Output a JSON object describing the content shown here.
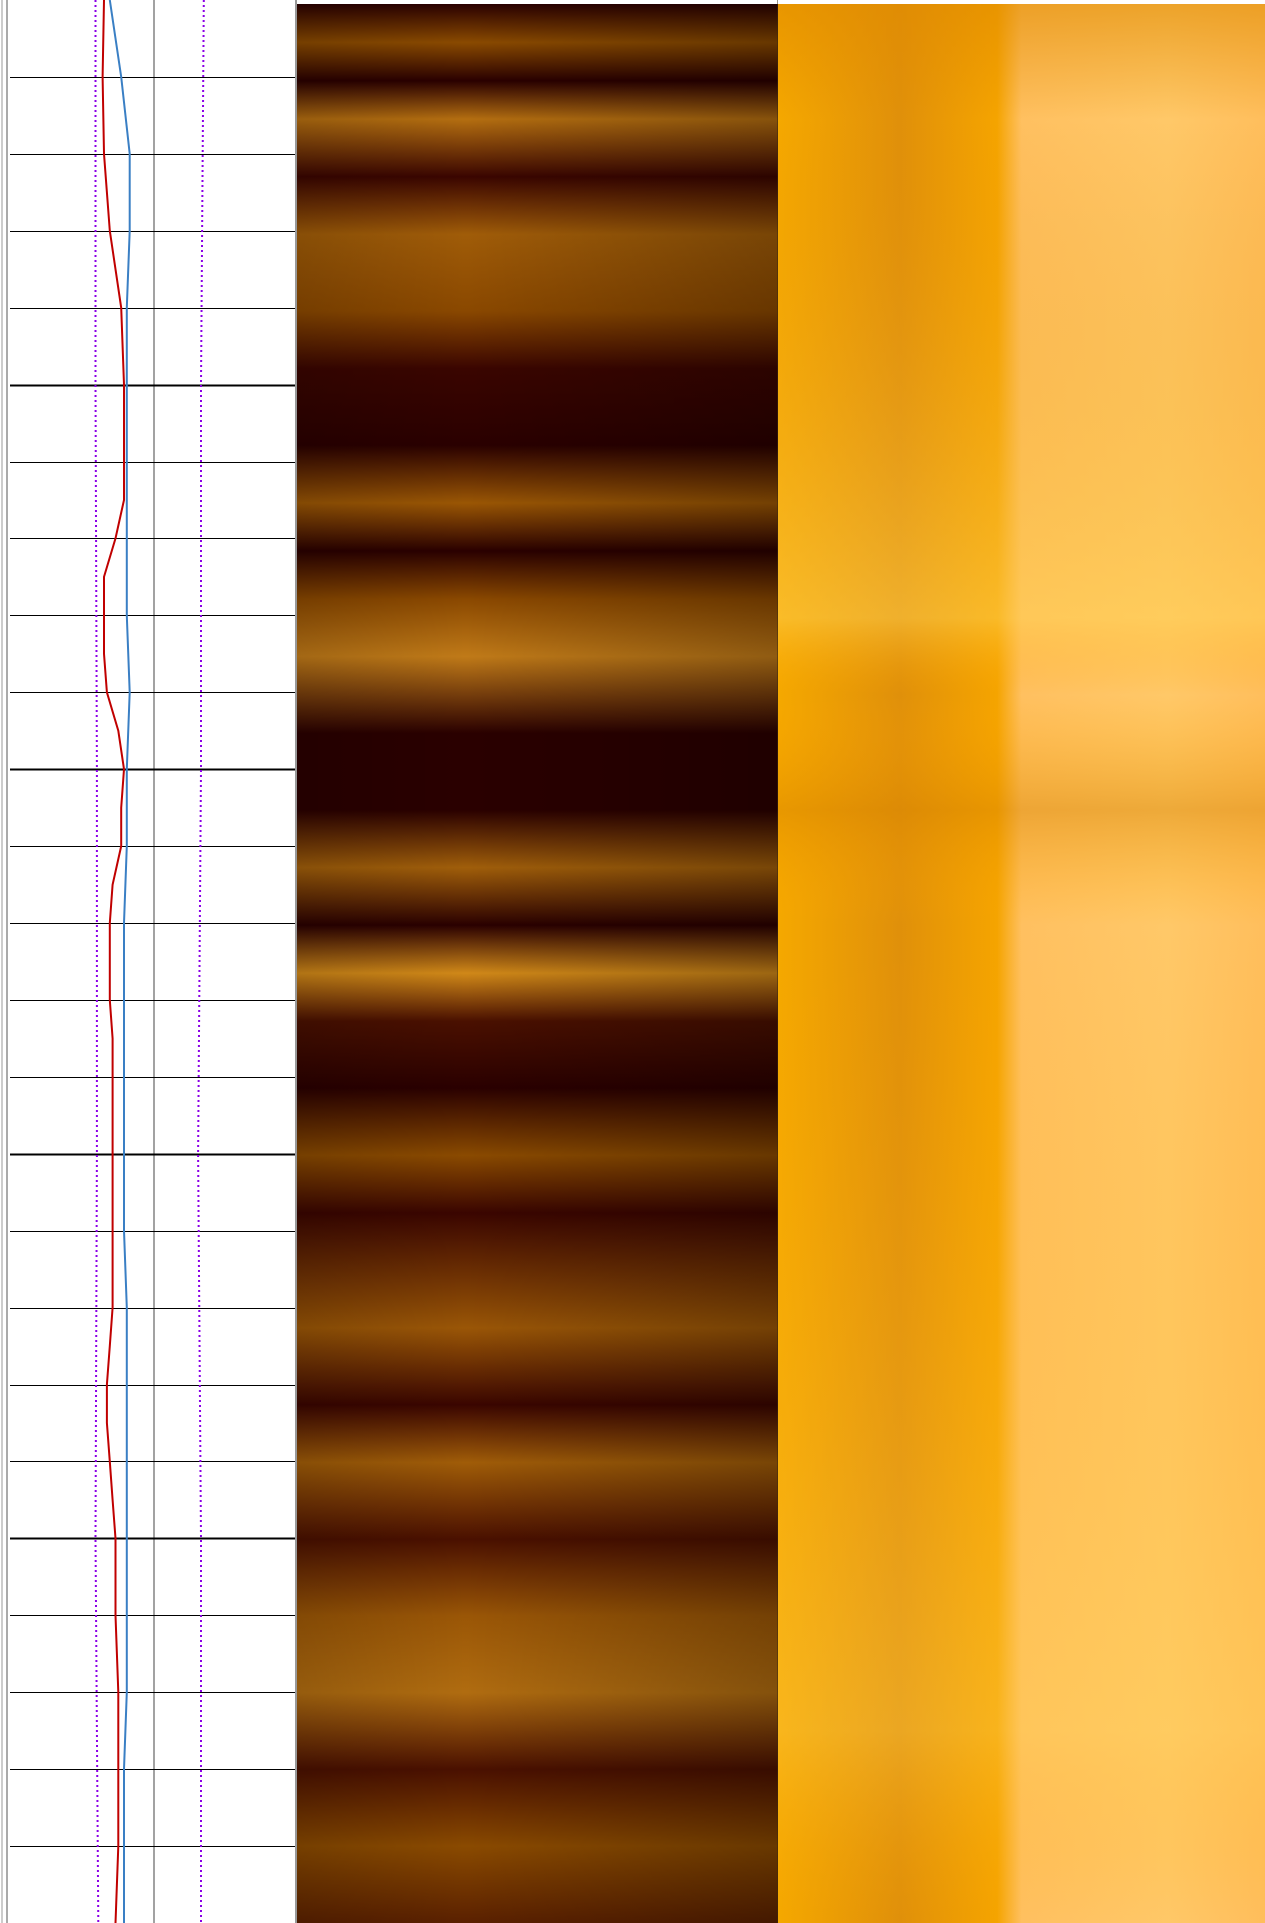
{
  "chart_data": {
    "type": "line",
    "title": "",
    "xlabel": "",
    "ylabel": "",
    "depth_range": [
      0,
      100
    ],
    "grid": true,
    "grid_major_every": 20,
    "grid_minor_every": 4,
    "curve_range": [
      0,
      10
    ],
    "series": [
      {
        "color": "#c00000",
        "line_style": "solid",
        "depth": [
          0,
          4,
          8,
          12,
          16,
          20,
          24,
          26,
          28,
          30,
          34,
          36,
          38,
          40,
          42,
          44,
          46,
          48,
          50,
          52,
          54,
          56,
          60,
          64,
          68,
          70,
          72,
          74,
          76,
          78,
          80,
          84,
          88,
          92,
          96,
          100
        ],
        "values": [
          3.3,
          3.25,
          3.3,
          3.5,
          3.9,
          4.0,
          4.0,
          4.0,
          3.7,
          3.3,
          3.3,
          3.4,
          3.8,
          4.0,
          3.9,
          3.9,
          3.6,
          3.5,
          3.5,
          3.5,
          3.6,
          3.6,
          3.6,
          3.6,
          3.6,
          3.5,
          3.4,
          3.4,
          3.5,
          3.6,
          3.7,
          3.7,
          3.8,
          3.8,
          3.8,
          3.7
        ]
      },
      {
        "color": "#3a7fc4",
        "line_style": "solid",
        "depth": [
          0,
          4,
          8,
          12,
          16,
          20,
          24,
          28,
          32,
          36,
          40,
          44,
          48,
          52,
          56,
          60,
          64,
          68,
          72,
          76,
          80,
          84,
          88,
          92,
          96,
          100
        ],
        "values": [
          3.5,
          3.9,
          4.2,
          4.2,
          4.1,
          4.1,
          4.1,
          4.1,
          4.1,
          4.2,
          4.1,
          4.1,
          4.0,
          4.0,
          4.0,
          4.0,
          4.0,
          4.1,
          4.1,
          4.1,
          4.1,
          4.1,
          4.1,
          4.0,
          4.0,
          4.0
        ]
      },
      {
        "color": "#8a00e6",
        "line_style": "dotted",
        "depth": [
          0,
          20,
          40,
          60,
          80,
          100
        ],
        "values": [
          3.0,
          3.0,
          3.05,
          3.05,
          3.0,
          3.1
        ]
      },
      {
        "color": "#8a00e6",
        "line_style": "dotted",
        "depth": [
          0,
          20,
          40,
          60,
          80,
          100
        ],
        "values": [
          6.8,
          6.7,
          6.7,
          6.6,
          6.7,
          6.7
        ]
      }
    ]
  }
}
